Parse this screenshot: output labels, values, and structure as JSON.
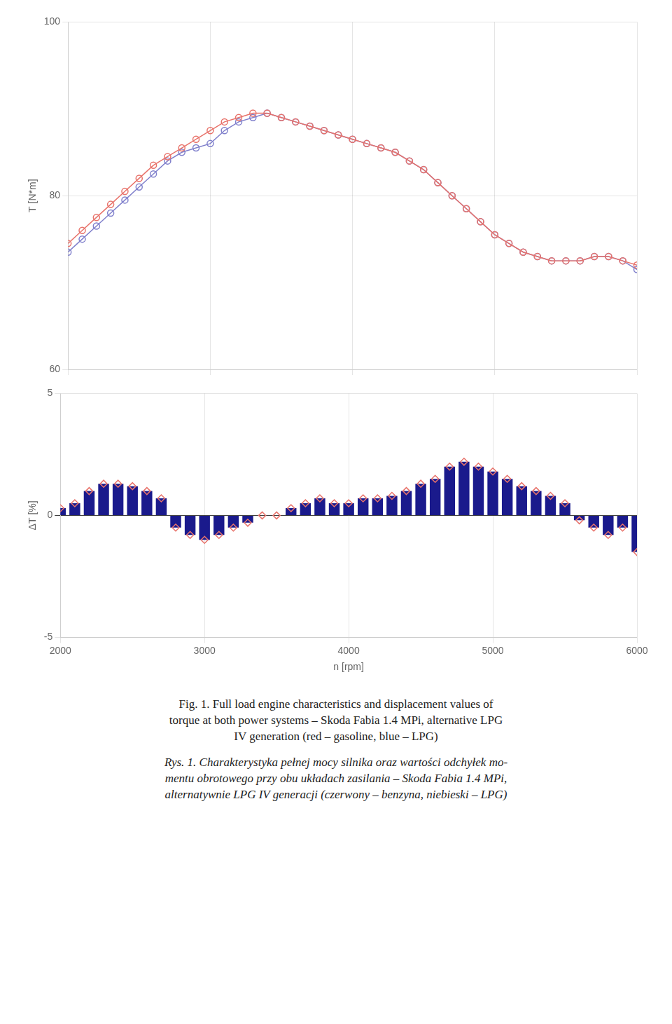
{
  "chart_data": [
    {
      "type": "line",
      "x": [
        2000,
        2100,
        2200,
        2300,
        2400,
        2500,
        2600,
        2700,
        2800,
        2900,
        3000,
        3100,
        3200,
        3300,
        3400,
        3500,
        3600,
        3700,
        3800,
        3900,
        4000,
        4100,
        4200,
        4300,
        4400,
        4500,
        4600,
        4700,
        4800,
        4900,
        5000,
        5100,
        5200,
        5300,
        5400,
        5500,
        5600,
        5700,
        5800,
        5900,
        6000
      ],
      "series": [
        {
          "color": "#E8736B",
          "marker": "circle",
          "values": [
            74.5,
            76.0,
            77.5,
            79.0,
            80.5,
            82.0,
            83.5,
            84.5,
            85.5,
            86.5,
            87.5,
            88.5,
            89.0,
            89.5,
            89.5,
            89.0,
            88.5,
            88.0,
            87.5,
            87.0,
            86.5,
            86.0,
            85.5,
            85.0,
            84.0,
            83.0,
            81.5,
            80.0,
            78.5,
            77.0,
            75.5,
            74.5,
            73.5,
            73.0,
            72.5,
            72.5,
            72.5,
            73.0,
            73.0,
            72.5,
            72.0
          ]
        },
        {
          "color": "#8080CC",
          "marker": "circle",
          "values": [
            73.5,
            75.0,
            76.5,
            78.0,
            79.5,
            81.0,
            82.5,
            84.0,
            85.0,
            85.5,
            86.0,
            87.5,
            88.5,
            89.0,
            89.5,
            89.0,
            88.5,
            88.0,
            87.5,
            87.0,
            86.5,
            86.0,
            85.5,
            85.0,
            84.0,
            83.0,
            81.5,
            80.0,
            78.5,
            77.0,
            75.5,
            74.5,
            73.5,
            73.0,
            72.5,
            72.5,
            72.5,
            73.0,
            73.0,
            72.5,
            71.5
          ]
        }
      ],
      "y_label": "T [N*m]",
      "xlim": [
        2000,
        6000
      ],
      "xticks": [
        2000,
        3000,
        4000,
        5000,
        6000
      ],
      "ylim": [
        60,
        100
      ],
      "yticks": [
        60,
        80,
        100
      ],
      "tick_labels": "y",
      "grid": true
    },
    {
      "type": "bar",
      "x": [
        2000,
        2100,
        2200,
        2300,
        2400,
        2500,
        2600,
        2700,
        2800,
        2900,
        3000,
        3100,
        3200,
        3300,
        3400,
        3500,
        3600,
        3700,
        3800,
        3900,
        4000,
        4100,
        4200,
        4300,
        4400,
        4500,
        4600,
        4700,
        4800,
        4900,
        5000,
        5100,
        5200,
        5300,
        5400,
        5500,
        5600,
        5700,
        5800,
        5900,
        6000
      ],
      "series": [
        {
          "type": "bar",
          "color": "#1A1A8C",
          "values": [
            0.3,
            0.5,
            1.0,
            1.3,
            1.3,
            1.2,
            1.0,
            0.7,
            -0.5,
            -0.8,
            -1.0,
            -0.8,
            -0.5,
            -0.3,
            0.0,
            0.0,
            0.3,
            0.5,
            0.7,
            0.5,
            0.5,
            0.7,
            0.7,
            0.8,
            1.0,
            1.3,
            1.5,
            2.0,
            2.2,
            2.0,
            1.8,
            1.5,
            1.2,
            1.0,
            0.8,
            0.5,
            -0.2,
            -0.5,
            -0.8,
            -0.5,
            -1.5
          ]
        },
        {
          "type": "scatter",
          "color": "#E8736B",
          "marker": "diamond",
          "values": [
            0.3,
            0.5,
            1.0,
            1.3,
            1.3,
            1.2,
            1.0,
            0.7,
            -0.5,
            -0.8,
            -1.0,
            -0.8,
            -0.5,
            -0.3,
            0.0,
            0.0,
            0.3,
            0.5,
            0.7,
            0.5,
            0.5,
            0.7,
            0.7,
            0.8,
            1.0,
            1.3,
            1.5,
            2.0,
            2.2,
            2.0,
            1.8,
            1.5,
            1.2,
            1.0,
            0.8,
            0.5,
            -0.2,
            -0.5,
            -0.8,
            -0.5,
            -1.5
          ]
        }
      ],
      "x_label": "n [rpm]",
      "y_label": "ΔT [%]",
      "xlim": [
        2000,
        6000
      ],
      "xticks": [
        2000,
        3000,
        4000,
        5000,
        6000
      ],
      "ylim": [
        -5,
        5
      ],
      "yticks": [
        -5,
        0,
        5
      ],
      "grid": true,
      "annotations": [
        "Fig. 1. Full load engine characteristics and displacement values of\ntorque at both power systems – Skoda Fabia 1.4 MPi, alternative LPG\nIV generation (red – gasoline, blue – LPG)",
        "Rys. 1. Charakterystyka pełnej mocy silnika oraz wartości odchyłek mo-\nmentu obrotowego przy obu układach zasilania – Skoda Fabia 1.4 MPi,\nalternatywnie LPG IV generacji (czerwony – benzyna, niebieski – LPG)"
      ]
    }
  ]
}
